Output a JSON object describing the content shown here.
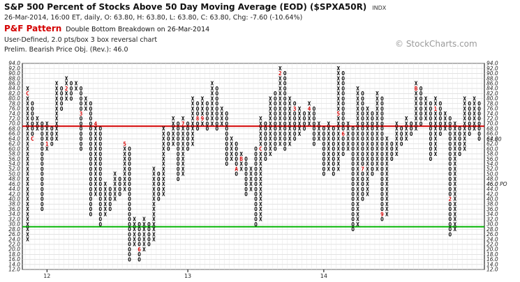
{
  "header": {
    "title": "S&P 500 Percent of Stocks Above 50 Day Moving Average (EOD) ($SPXA50R)",
    "exchange": "INDX",
    "ohlc": "26-Mar-2014, 16:00 ET, daily, O: 63.80, H: 63.80, L: 63.80, C: 63.80, Chg: -7.60 (-10.64%)",
    "pattern_label": "P&F Pattern",
    "pattern_text": "Double Bottom Breakdown on 26-Mar-2014",
    "box_text": "User-Defined, 2.0 pts/box 3 box reversal chart",
    "objective_text": "Prelim. Bearish Price Obj. (Rev.): 46.0",
    "watermark": "© StockCharts.com"
  },
  "colors": {
    "x_mark": "#000000",
    "o_mark": "#000000",
    "month_mark": "#d40000",
    "red_line": "#d40000",
    "green_line": "#00b400",
    "grid": "#d0d0d0"
  },
  "chart_data": {
    "type": "point-and-figure",
    "box_size": 2.0,
    "reversal": 3,
    "ylim": [
      12,
      94
    ],
    "y_ticks": [
      "94.0",
      "92.0",
      "90.0",
      "88.0",
      "86.0",
      "84.0",
      "82.0",
      "80.0",
      "78.0",
      "76.0",
      "74.0",
      "72.0",
      "70.0",
      "68.0",
      "66.0",
      "64.0",
      "62.0",
      "60.0",
      "58.0",
      "56.0",
      "54.0",
      "52.0",
      "50.0",
      "48.0",
      "46.0",
      "44.0",
      "42.0",
      "40.0",
      "38.0",
      "36.0",
      "34.0",
      "32.0",
      "30.0",
      "28.0",
      "26.0",
      "24.0",
      "22.0",
      "20.0",
      "18.0",
      "16.0",
      "14.0",
      "12.0"
    ],
    "x_labels": [
      {
        "label": "12",
        "column": 4
      },
      {
        "label": "13",
        "column": 33
      },
      {
        "label": "14",
        "column": 61
      }
    ],
    "horizontal_lines": [
      {
        "name": "red",
        "value": 69
      },
      {
        "name": "green",
        "value": 29
      }
    ],
    "last_price_label": {
      "text": "63.80",
      "value": 63.8
    },
    "price_objective_label": {
      "text": "46.0 PO",
      "value": 46
    },
    "columns": [
      {
        "type": "X",
        "low": 24,
        "high": 84,
        "months": {
          "82": "C"
        }
      },
      {
        "type": "O",
        "low": 64,
        "high": 78,
        "months": {
          "64": "C"
        }
      },
      {
        "type": "X",
        "low": 68,
        "high": 72
      },
      {
        "type": "O",
        "low": 36,
        "high": 70
      },
      {
        "type": "X",
        "low": 60,
        "high": 70,
        "months": {
          "62": "1"
        }
      },
      {
        "type": "O",
        "low": 62,
        "high": 68
      },
      {
        "type": "X",
        "low": 64,
        "high": 86
      },
      {
        "type": "O",
        "low": 76,
        "high": 84
      },
      {
        "type": "X",
        "low": 80,
        "high": 88,
        "months": {
          "84": "2"
        }
      },
      {
        "type": "O",
        "low": 80,
        "high": 86
      },
      {
        "type": "X",
        "low": 84,
        "high": 86
      },
      {
        "type": "O",
        "low": 60,
        "high": 84,
        "months": {
          "74": "3"
        }
      },
      {
        "type": "X",
        "low": 76,
        "high": 80
      },
      {
        "type": "O",
        "low": 34,
        "high": 78
      },
      {
        "type": "X",
        "low": 42,
        "high": 70,
        "months": {
          "70": "4"
        }
      },
      {
        "type": "O",
        "low": 30,
        "high": 68
      },
      {
        "type": "X",
        "low": 34,
        "high": 46
      },
      {
        "type": "O",
        "low": 36,
        "high": 44
      },
      {
        "type": "X",
        "low": 40,
        "high": 50
      },
      {
        "type": "O",
        "low": 42,
        "high": 48
      },
      {
        "type": "X",
        "low": 44,
        "high": 62,
        "months": {
          "62": "5"
        }
      },
      {
        "type": "O",
        "low": 16,
        "high": 60
      },
      {
        "type": "X",
        "low": 22,
        "high": 32
      },
      {
        "type": "O",
        "low": 16,
        "high": 30,
        "months": {
          "20": "6"
        }
      },
      {
        "type": "X",
        "low": 20,
        "high": 32
      },
      {
        "type": "O",
        "low": 22,
        "high": 30
      },
      {
        "type": "X",
        "low": 24,
        "high": 52
      },
      {
        "type": "O",
        "low": 40,
        "high": 50
      },
      {
        "type": "X",
        "low": 42,
        "high": 68
      },
      {
        "type": "O",
        "low": 60,
        "high": 66
      },
      {
        "type": "X",
        "low": 62,
        "high": 72
      },
      {
        "type": "O",
        "low": 48,
        "high": 70
      },
      {
        "type": "X",
        "low": 50,
        "high": 72,
        "months": {
          "70": "7"
        }
      },
      {
        "type": "O",
        "low": 60,
        "high": 70
      },
      {
        "type": "X",
        "low": 62,
        "high": 80
      },
      {
        "type": "O",
        "low": 68,
        "high": 78,
        "months": {
          "72": "8"
        }
      },
      {
        "type": "X",
        "low": 70,
        "high": 80,
        "months": {
          "72": "9"
        }
      },
      {
        "type": "O",
        "low": 68,
        "high": 78
      },
      {
        "type": "X",
        "low": 70,
        "high": 86
      },
      {
        "type": "O",
        "low": 68,
        "high": 84
      },
      {
        "type": "X",
        "low": 70,
        "high": 76
      },
      {
        "type": "O",
        "low": 54,
        "high": 74
      },
      {
        "type": "X",
        "low": 56,
        "high": 64
      },
      {
        "type": "O",
        "low": 50,
        "high": 62,
        "months": {
          "52": "A"
        }
      },
      {
        "type": "X",
        "low": 52,
        "high": 58,
        "months": {
          "56": "B"
        }
      },
      {
        "type": "O",
        "low": 42,
        "high": 56
      },
      {
        "type": "X",
        "low": 44,
        "high": 52
      },
      {
        "type": "O",
        "low": 30,
        "high": 60
      },
      {
        "type": "X",
        "low": 32,
        "high": 72,
        "months": {
          "60": "C"
        }
      },
      {
        "type": "O",
        "low": 56,
        "high": 70
      },
      {
        "type": "X",
        "low": 58,
        "high": 80
      },
      {
        "type": "O",
        "low": 60,
        "high": 82
      },
      {
        "type": "X",
        "low": 62,
        "high": 92,
        "months": {
          "90": "2"
        }
      },
      {
        "type": "O",
        "low": 60,
        "high": 90
      },
      {
        "type": "X",
        "low": 62,
        "high": 80
      },
      {
        "type": "O",
        "low": 64,
        "high": 78,
        "months": {
          "76": "3"
        }
      },
      {
        "type": "X",
        "low": 66,
        "high": 76
      },
      {
        "type": "O",
        "low": 68,
        "high": 74
      },
      {
        "type": "X",
        "low": 70,
        "high": 78,
        "months": {
          "76": "4"
        }
      },
      {
        "type": "O",
        "low": 62,
        "high": 76
      },
      {
        "type": "X",
        "low": 64,
        "high": 70
      },
      {
        "type": "O",
        "low": 50,
        "high": 68
      },
      {
        "type": "X",
        "low": 52,
        "high": 70
      },
      {
        "type": "O",
        "low": 50,
        "high": 68
      },
      {
        "type": "X",
        "low": 52,
        "high": 92,
        "months": {
          "74": "5"
        }
      },
      {
        "type": "O",
        "low": 58,
        "high": 90,
        "months": {
          "66": "6"
        }
      },
      {
        "type": "X",
        "low": 60,
        "high": 70
      },
      {
        "type": "O",
        "low": 28,
        "high": 68
      },
      {
        "type": "X",
        "low": 30,
        "high": 84
      },
      {
        "type": "O",
        "low": 40,
        "high": 82,
        "months": {
          "52": "7"
        }
      },
      {
        "type": "X",
        "low": 42,
        "high": 76
      },
      {
        "type": "O",
        "low": 50,
        "high": 74
      },
      {
        "type": "X",
        "low": 52,
        "high": 82
      },
      {
        "type": "O",
        "low": 32,
        "high": 80,
        "months": {
          "34": "9"
        }
      },
      {
        "type": "X",
        "low": 34,
        "high": 64
      },
      {
        "type": "O",
        "low": 56,
        "high": 62
      },
      {
        "type": "X",
        "low": 58,
        "high": 70
      },
      {
        "type": "O",
        "low": 62,
        "high": 68
      },
      {
        "type": "X",
        "low": 64,
        "high": 72
      },
      {
        "type": "O",
        "low": 66,
        "high": 70
      },
      {
        "type": "X",
        "low": 68,
        "high": 86,
        "months": {
          "84": "B"
        }
      },
      {
        "type": "O",
        "low": 70,
        "high": 84
      },
      {
        "type": "X",
        "low": 72,
        "high": 80
      },
      {
        "type": "O",
        "low": 56,
        "high": 78
      },
      {
        "type": "X",
        "low": 58,
        "high": 80,
        "months": {
          "76": "1"
        }
      },
      {
        "type": "O",
        "low": 66,
        "high": 78
      },
      {
        "type": "X",
        "low": 68,
        "high": 74
      },
      {
        "type": "O",
        "low": 26,
        "high": 72,
        "months": {
          "40": "2"
        }
      },
      {
        "type": "X",
        "low": 28,
        "high": 70
      },
      {
        "type": "O",
        "low": 58,
        "high": 68
      },
      {
        "type": "X",
        "low": 60,
        "high": 80
      },
      {
        "type": "O",
        "low": 66,
        "high": 78
      },
      {
        "type": "X",
        "low": 68,
        "high": 80
      },
      {
        "type": "O",
        "low": 64,
        "high": 78
      }
    ]
  }
}
